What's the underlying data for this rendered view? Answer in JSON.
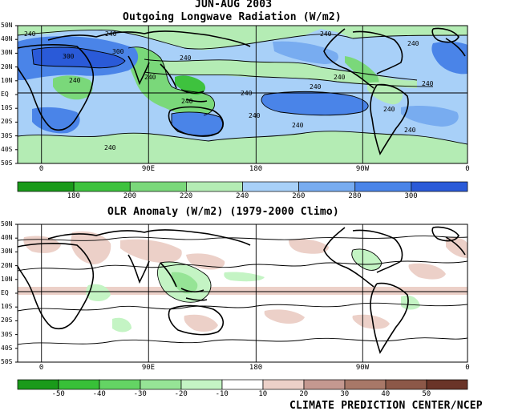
{
  "header": {
    "period": "JUN-AUG 2003",
    "title_top": "Outgoing Longwave Radiation (W/m2)",
    "title_bottom": "OLR Anomaly (W/m2) (1979-2000 Climo)"
  },
  "axes": {
    "lat_labels": [
      "50N",
      "40N",
      "30N",
      "20N",
      "10N",
      "EQ",
      "10S",
      "20S",
      "30S",
      "40S",
      "50S"
    ],
    "lon_labels": [
      "0",
      "90E",
      "180",
      "90W",
      "0"
    ]
  },
  "top_map": {
    "contour_labels": [
      "240",
      "240",
      "240",
      "300",
      "300",
      "240",
      "240",
      "240",
      "240",
      "240",
      "240",
      "240",
      "240",
      "240",
      "240",
      "240",
      "240",
      "240",
      "240"
    ]
  },
  "colorbar_top": {
    "ticks": [
      "180",
      "200",
      "220",
      "240",
      "260",
      "280",
      "300"
    ],
    "colors": [
      "#1a9a1a",
      "#3ec23e",
      "#7ad87a",
      "#b4ecb4",
      "#a8d0f8",
      "#78acf0",
      "#4a84e8",
      "#2a5ad8"
    ]
  },
  "colorbar_bottom": {
    "ticks": [
      "-50",
      "-40",
      "-30",
      "-20",
      "-10",
      "10",
      "20",
      "30",
      "40",
      "50"
    ],
    "colors": [
      "#1a9a1a",
      "#38c038",
      "#64d464",
      "#96e496",
      "#c4f4c4",
      "#ffffff",
      "#ecd0c8",
      "#c49890",
      "#a87868",
      "#8c5848",
      "#6a3428"
    ]
  },
  "footer": {
    "credit": "CLIMATE PREDICTION CENTER/NCEP"
  }
}
